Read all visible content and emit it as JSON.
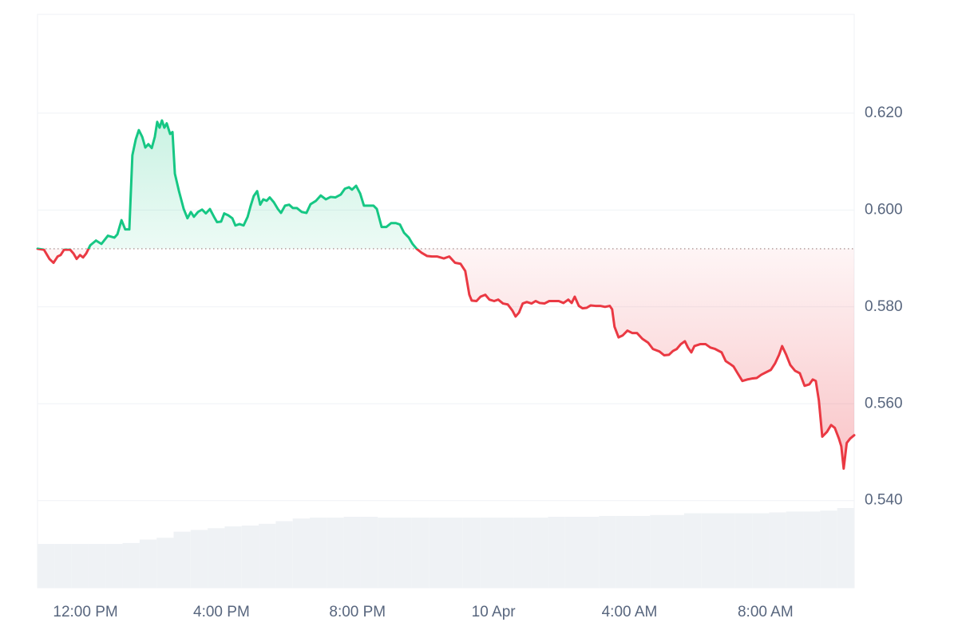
{
  "chart_data": {
    "type": "line",
    "x": [
      10.59,
      10.78,
      10.94,
      11.06,
      11.18,
      11.27,
      11.37,
      11.55,
      11.65,
      11.74,
      11.84,
      11.93,
      12.02,
      12.14,
      12.31,
      12.47,
      12.66,
      12.85,
      12.94,
      13.06,
      13.17,
      13.29,
      13.38,
      13.48,
      13.57,
      13.67,
      13.76,
      13.85,
      13.95,
      14.04,
      14.11,
      14.18,
      14.25,
      14.32,
      14.39,
      14.49,
      14.56,
      14.63,
      14.75,
      14.89,
      15.0,
      15.1,
      15.19,
      15.31,
      15.43,
      15.54,
      15.66,
      15.78,
      15.87,
      15.99,
      16.08,
      16.2,
      16.32,
      16.41,
      16.53,
      16.65,
      16.77,
      16.86,
      16.95,
      17.05,
      17.14,
      17.23,
      17.33,
      17.42,
      17.54,
      17.66,
      17.75,
      17.87,
      17.99,
      18.1,
      18.22,
      18.36,
      18.5,
      18.62,
      18.78,
      18.92,
      19.07,
      19.21,
      19.35,
      19.51,
      19.63,
      19.75,
      19.84,
      19.96,
      20.08,
      20.19,
      20.33,
      20.47,
      20.57,
      20.71,
      20.85,
      20.99,
      21.13,
      21.25,
      21.37,
      21.51,
      21.62,
      21.74,
      21.88,
      22.05,
      22.19,
      22.35,
      22.54,
      22.7,
      22.87,
      23.03,
      23.17,
      23.29,
      23.36,
      23.5,
      23.62,
      23.76,
      23.88,
      24.02,
      24.14,
      24.28,
      24.42,
      24.56,
      24.65,
      24.75,
      24.86,
      24.98,
      25.12,
      25.24,
      25.36,
      25.5,
      25.64,
      25.78,
      25.92,
      26.06,
      26.2,
      26.3,
      26.39,
      26.51,
      26.62,
      26.74,
      26.86,
      27.0,
      27.14,
      27.28,
      27.42,
      27.49,
      27.56,
      27.68,
      27.8,
      27.94,
      28.08,
      28.22,
      28.38,
      28.55,
      28.69,
      28.88,
      29.02,
      29.16,
      29.28,
      29.39,
      29.51,
      29.63,
      29.72,
      29.82,
      29.91,
      30.08,
      30.24,
      30.38,
      30.52,
      30.71,
      30.83,
      30.94,
      31.06,
      31.18,
      31.32,
      31.46,
      31.6,
      31.74,
      31.88,
      32.02,
      32.16,
      32.28,
      32.4,
      32.49,
      32.61,
      32.73,
      32.87,
      33.01,
      33.15,
      33.29,
      33.39,
      33.48,
      33.57,
      33.67,
      33.81,
      33.93,
      34.04,
      34.16,
      34.23,
      34.3,
      34.39,
      34.49,
      34.61
    ],
    "series": [
      {
        "values": [
          0.592,
          0.5918,
          0.5899,
          0.5891,
          0.5904,
          0.5907,
          0.5918,
          0.5918,
          0.591,
          0.5899,
          0.5907,
          0.5902,
          0.591,
          0.5927,
          0.5937,
          0.593,
          0.5947,
          0.5943,
          0.595,
          0.5979,
          0.596,
          0.596,
          0.6113,
          0.6146,
          0.6165,
          0.6151,
          0.6129,
          0.6136,
          0.6128,
          0.6151,
          0.6182,
          0.617,
          0.6185,
          0.617,
          0.6179,
          0.6157,
          0.6161,
          0.6075,
          0.6039,
          0.6002,
          0.5983,
          0.5996,
          0.5986,
          0.5996,
          0.6001,
          0.5993,
          0.6002,
          0.5986,
          0.5975,
          0.5976,
          0.5993,
          0.5989,
          0.5983,
          0.5968,
          0.5971,
          0.5968,
          0.5986,
          0.6009,
          0.6029,
          0.6039,
          0.6011,
          0.6022,
          0.6019,
          0.6026,
          0.6016,
          0.6002,
          0.5994,
          0.6009,
          0.6011,
          0.6004,
          0.6004,
          0.5996,
          0.5994,
          0.6012,
          0.6019,
          0.603,
          0.6022,
          0.6027,
          0.6026,
          0.6032,
          0.6044,
          0.6047,
          0.6042,
          0.605,
          0.6034,
          0.6009,
          0.6009,
          0.6009,
          0.6002,
          0.5965,
          0.5965,
          0.5973,
          0.5973,
          0.597,
          0.5953,
          0.5943,
          0.593,
          0.592,
          0.5912,
          0.5905,
          0.5904,
          0.5904,
          0.59,
          0.5904,
          0.5891,
          0.5889,
          0.5874,
          0.5825,
          0.5813,
          0.5812,
          0.5821,
          0.5825,
          0.5815,
          0.5812,
          0.5815,
          0.5807,
          0.5805,
          0.5792,
          0.578,
          0.5788,
          0.5807,
          0.581,
          0.5807,
          0.5812,
          0.5808,
          0.5807,
          0.5812,
          0.5812,
          0.5812,
          0.5808,
          0.5815,
          0.5808,
          0.5821,
          0.5802,
          0.5797,
          0.5798,
          0.5803,
          0.5802,
          0.5802,
          0.58,
          0.5802,
          0.5795,
          0.5759,
          0.5737,
          0.5741,
          0.5751,
          0.5746,
          0.5746,
          0.5734,
          0.5726,
          0.5713,
          0.5708,
          0.57,
          0.5701,
          0.5709,
          0.5713,
          0.5723,
          0.5729,
          0.5716,
          0.5706,
          0.5719,
          0.5723,
          0.5723,
          0.5716,
          0.5713,
          0.5706,
          0.5688,
          0.5683,
          0.5677,
          0.5663,
          0.5647,
          0.565,
          0.5652,
          0.5653,
          0.566,
          0.5665,
          0.567,
          0.5683,
          0.5701,
          0.5719,
          0.5701,
          0.568,
          0.5668,
          0.5663,
          0.5637,
          0.564,
          0.565,
          0.5647,
          0.5607,
          0.5532,
          0.5542,
          0.5556,
          0.555,
          0.5528,
          0.5512,
          0.5466,
          0.5519,
          0.5528,
          0.5535
        ],
        "color_up": "#16c784",
        "color_down": "#ea3943"
      }
    ],
    "baseline": 0.592,
    "xlim": [
      10.59,
      34.61
    ],
    "xticks": [
      {
        "value": 12,
        "label": "12:00 PM"
      },
      {
        "value": 16,
        "label": "4:00 PM"
      },
      {
        "value": 20,
        "label": "8:00 PM"
      },
      {
        "value": 24,
        "label": "10 Apr"
      },
      {
        "value": 28,
        "label": "4:00 AM"
      },
      {
        "value": 32,
        "label": "8:00 AM"
      }
    ],
    "ylim": [
      0.522,
      0.6404
    ],
    "yticks": [
      {
        "value": 0.54,
        "label": "0.540"
      },
      {
        "value": 0.56,
        "label": "0.560"
      },
      {
        "value": 0.58,
        "label": "0.580"
      },
      {
        "value": 0.6,
        "label": "0.600"
      },
      {
        "value": 0.62,
        "label": "0.620"
      }
    ],
    "grid": true,
    "volume": {
      "values": [
        50,
        50,
        50,
        50,
        50,
        51,
        55,
        57,
        64,
        66,
        68,
        70,
        71,
        73,
        76,
        79,
        80,
        80,
        81,
        81,
        80,
        80,
        80,
        80,
        80,
        80,
        80,
        80,
        80,
        80,
        81,
        81,
        81,
        82,
        82,
        82,
        83,
        83,
        85,
        85,
        85,
        85,
        85,
        86,
        87,
        87,
        88,
        91
      ],
      "color": "#eff2f5"
    }
  }
}
